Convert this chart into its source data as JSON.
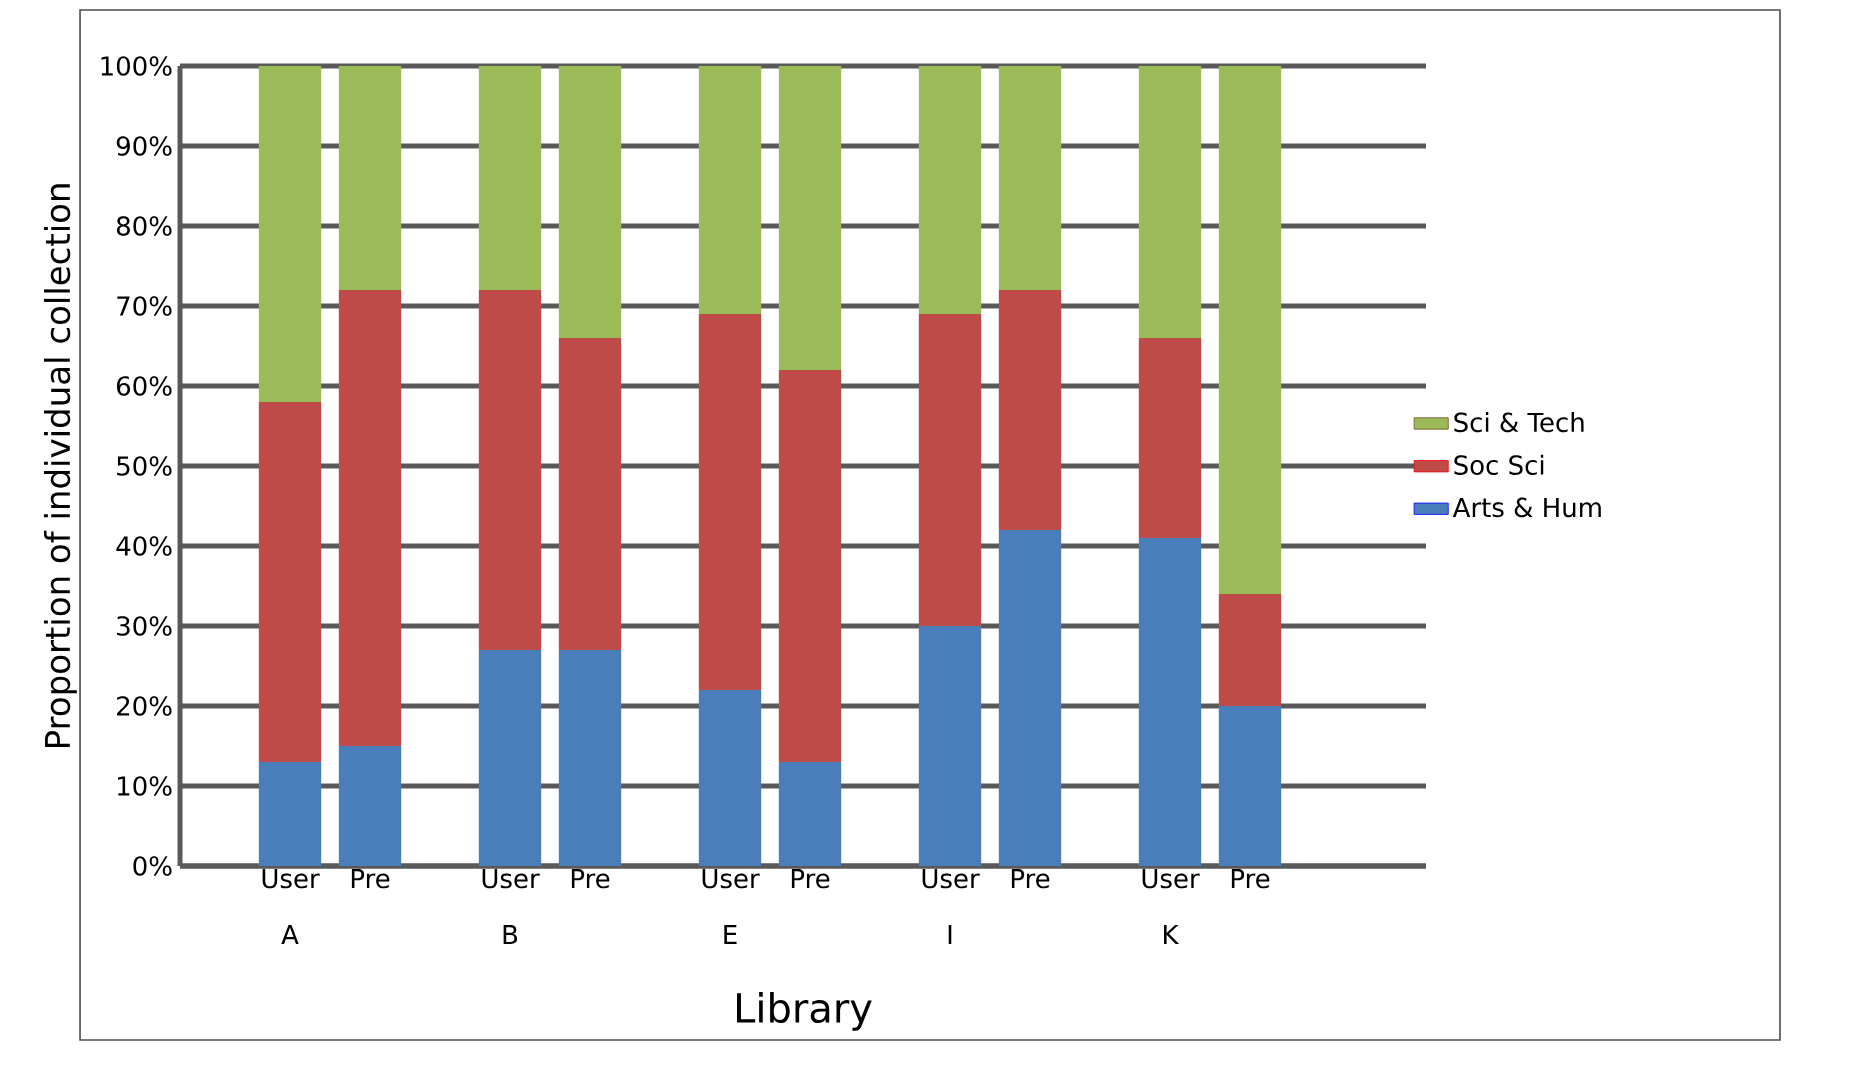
{
  "chart_data": {
    "type": "bar",
    "stacked": true,
    "xlabel": "Library",
    "ylabel": "Proportion of individual collection",
    "categories": [
      "User",
      "Pre",
      "User",
      "Pre",
      "User",
      "Pre",
      "User",
      "Pre",
      "User",
      "Pre"
    ],
    "annotations": [
      "A",
      "B",
      "E",
      "I",
      "K"
    ],
    "series": [
      {
        "name": "Arts & Hum",
        "color": "#4a7ebb",
        "values": [
          13,
          15,
          27,
          27,
          22,
          13,
          30,
          42,
          41,
          20
        ]
      },
      {
        "name": "Soc Sci",
        "color": "#be4b48",
        "values": [
          45,
          57,
          45,
          39,
          47,
          49,
          39,
          30,
          25,
          14
        ]
      },
      {
        "name": "Sci & Tech",
        "color": "#9bbb59",
        "values": [
          42,
          28,
          28,
          34,
          31,
          38,
          31,
          28,
          34,
          66
        ]
      }
    ],
    "ylim": [
      0,
      100
    ],
    "yticks": [
      {
        "value": 0,
        "label": "0%"
      },
      {
        "value": 10,
        "label": "10%"
      },
      {
        "value": 20,
        "label": "20%"
      },
      {
        "value": 30,
        "label": "30%"
      },
      {
        "value": 40,
        "label": "40%"
      },
      {
        "value": 50,
        "label": "50%"
      },
      {
        "value": 60,
        "label": "60%"
      },
      {
        "value": 70,
        "label": "70%"
      },
      {
        "value": 80,
        "label": "80%"
      },
      {
        "value": 90,
        "label": "90%"
      },
      {
        "value": 100,
        "label": "100%"
      }
    ],
    "grid": "y",
    "legend": "right"
  }
}
